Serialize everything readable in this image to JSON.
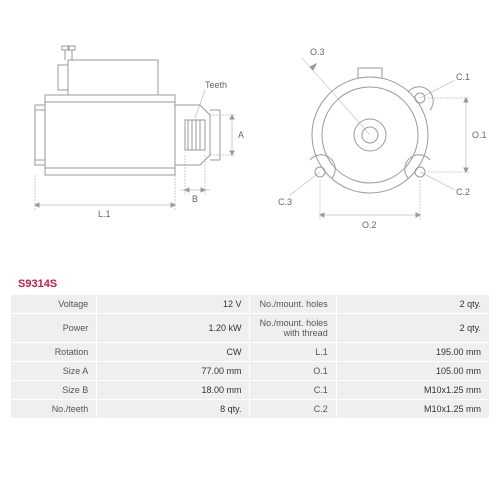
{
  "part_number": "S9314S",
  "diagram": {
    "type": "engineering-drawing",
    "stroke_color": "#9a9a9a",
    "stroke_width": 1,
    "label_color": "#666666",
    "label_fontsize": 9,
    "side_view": {
      "labels": {
        "L1": "L.1",
        "A": "A",
        "B": "B",
        "Teeth": "Teeth"
      }
    },
    "front_view": {
      "labels": {
        "O1": "O.1",
        "O2": "O.2",
        "O3": "O.3",
        "C1": "C.1",
        "C2": "C.2",
        "C3": "C.3"
      }
    }
  },
  "specs": {
    "rows": [
      {
        "l1": "Voltage",
        "v1": "12 V",
        "l2": "No./mount. holes",
        "v2": "2 qty."
      },
      {
        "l1": "Power",
        "v1": "1.20 kW",
        "l2": "No./mount. holes with thread",
        "v2": "2 qty."
      },
      {
        "l1": "Rotation",
        "v1": "CW",
        "l2": "L.1",
        "v2": "195.00 mm"
      },
      {
        "l1": "Size A",
        "v1": "77.00 mm",
        "l2": "O.1",
        "v2": "105.00 mm"
      },
      {
        "l1": "Size B",
        "v1": "18.00 mm",
        "l2": "C.1",
        "v2": "M10x1.25 mm"
      },
      {
        "l1": "No./teeth",
        "v1": "8 qty.",
        "l2": "C.2",
        "v2": "M10x1.25 mm"
      }
    ]
  },
  "colors": {
    "accent": "#c41e3a",
    "row_bg": "#efefef",
    "text": "#333333",
    "label_text": "#555555",
    "stroke": "#9a9a9a"
  }
}
